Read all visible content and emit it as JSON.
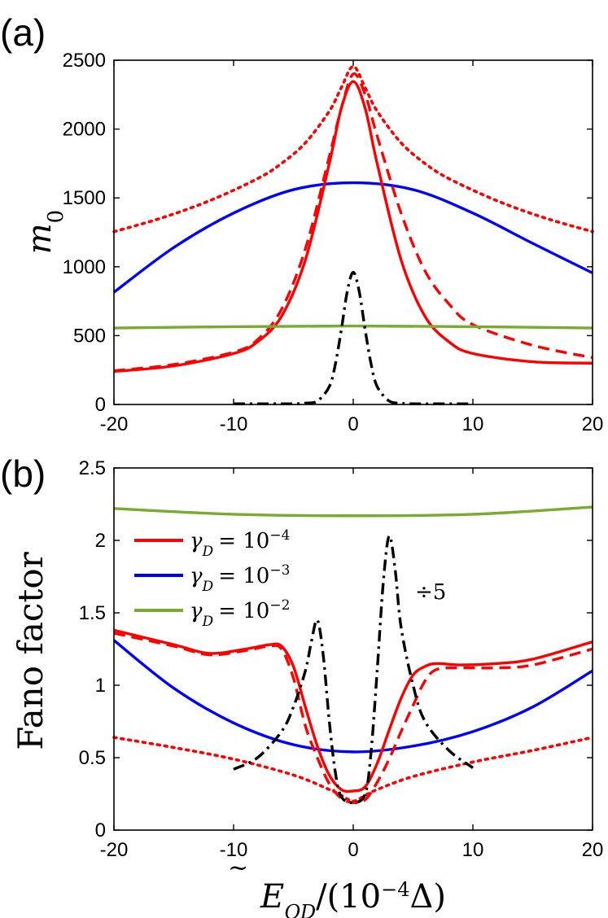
{
  "colors": {
    "red": "#ff0000",
    "blue": "#0000ff",
    "green": "#77ac30",
    "black": "#000000"
  },
  "chart_data": [
    {
      "panel_label": "(a)",
      "type": "line",
      "ylabel": "m",
      "ylabel_sub": "0",
      "xlim": [
        -20,
        20
      ],
      "ylim": [
        0,
        2500
      ],
      "xticks": [
        "-20",
        "-10",
        "0",
        "10",
        "20"
      ],
      "yticks": [
        "0",
        "500",
        "1000",
        "1500",
        "2000",
        "2500"
      ],
      "series": [
        {
          "name": "red dotted",
          "color": "#ff0000",
          "style": "dotted",
          "x": [
            -20,
            -16,
            -12,
            -8,
            -6,
            -4,
            -2,
            -1,
            0,
            1,
            2,
            4,
            6,
            8,
            12,
            16,
            20
          ],
          "y": [
            1255,
            1355,
            1480,
            1640,
            1750,
            1900,
            2130,
            2300,
            2455,
            2300,
            2130,
            1900,
            1750,
            1640,
            1480,
            1355,
            1255
          ]
        },
        {
          "name": "blue solid",
          "color": "#0000ff",
          "style": "solid",
          "x": [
            -20,
            -15,
            -10,
            -5,
            0,
            5,
            10,
            15,
            20
          ],
          "y": [
            815,
            1140,
            1390,
            1560,
            1610,
            1560,
            1390,
            1170,
            955
          ]
        },
        {
          "name": "red dashed",
          "color": "#ff0000",
          "style": "dashed",
          "x": [
            -20,
            -15,
            -10,
            -8,
            -6,
            -4,
            -2,
            -1,
            0,
            1,
            2,
            4,
            6,
            8,
            10,
            15,
            20
          ],
          "y": [
            245,
            290,
            380,
            470,
            690,
            1130,
            1800,
            2150,
            2400,
            2250,
            1950,
            1390,
            970,
            730,
            580,
            430,
            340
          ]
        },
        {
          "name": "red solid",
          "color": "#ff0000",
          "style": "solid",
          "x": [
            -20,
            -15,
            -10,
            -8,
            -6,
            -4,
            -2,
            -1,
            0,
            1,
            2,
            4,
            6,
            8,
            10,
            15,
            20
          ],
          "y": [
            240,
            280,
            370,
            455,
            640,
            1050,
            1750,
            2150,
            2345,
            2150,
            1750,
            1050,
            640,
            455,
            370,
            310,
            300
          ]
        },
        {
          "name": "green solid",
          "color": "#77ac30",
          "style": "solid",
          "x": [
            -20,
            -10,
            0,
            10,
            20
          ],
          "y": [
            555,
            565,
            570,
            565,
            555
          ]
        },
        {
          "name": "black dash-dot",
          "color": "#000000",
          "style": "dashdot",
          "x": [
            -10,
            -5,
            -4,
            -3,
            -2,
            -1.5,
            -1,
            -0.5,
            0,
            0.5,
            1,
            1.5,
            2,
            3,
            4,
            5,
            10
          ],
          "y": [
            5,
            5,
            10,
            25,
            130,
            290,
            540,
            820,
            960,
            820,
            540,
            290,
            130,
            25,
            10,
            5,
            5
          ]
        }
      ]
    },
    {
      "panel_label": "(b)",
      "type": "line",
      "ylabel": "Fano factor",
      "xlabel": "Ẽ_QD/(10^-4 Δ)",
      "xlabel_parts": {
        "E": "E",
        "sub": "QD",
        "mid": "/(10",
        "exp": "−4",
        "end": "Δ)"
      },
      "xlim": [
        -20,
        20
      ],
      "ylim": [
        0,
        2.5
      ],
      "xticks": [
        "-20",
        "-10",
        "0",
        "10",
        "20"
      ],
      "yticks": [
        "0",
        "0.5",
        "1",
        "1.5",
        "2",
        "2.5"
      ],
      "annotation": "÷5",
      "legend": [
        {
          "color": "#ff0000",
          "label_main": "γ",
          "label_sub": "D",
          "label_eq": "= 10",
          "label_exp": "−4"
        },
        {
          "color": "#0000ff",
          "label_main": "γ",
          "label_sub": "D",
          "label_eq": "= 10",
          "label_exp": "−3"
        },
        {
          "color": "#77ac30",
          "label_main": "γ",
          "label_sub": "D",
          "label_eq": "= 10",
          "label_exp": "−2"
        }
      ],
      "series": [
        {
          "name": "green solid",
          "color": "#77ac30",
          "style": "solid",
          "x": [
            -20,
            -10,
            0,
            10,
            20
          ],
          "y": [
            2.22,
            2.18,
            2.17,
            2.18,
            2.23
          ]
        },
        {
          "name": "blue solid",
          "color": "#0000ff",
          "style": "solid",
          "x": [
            -20,
            -15,
            -10,
            -5,
            0,
            5,
            10,
            15,
            20
          ],
          "y": [
            1.31,
            0.98,
            0.74,
            0.59,
            0.54,
            0.58,
            0.68,
            0.85,
            1.1
          ]
        },
        {
          "name": "red dotted",
          "color": "#ff0000",
          "style": "dotted",
          "x": [
            -20,
            -15,
            -10,
            -5,
            -2,
            -1,
            0,
            1,
            2,
            5,
            10,
            15,
            20
          ],
          "y": [
            0.64,
            0.57,
            0.49,
            0.38,
            0.28,
            0.24,
            0.2,
            0.24,
            0.28,
            0.37,
            0.47,
            0.55,
            0.64
          ]
        },
        {
          "name": "red dashed",
          "color": "#ff0000",
          "style": "dashed",
          "x": [
            -20,
            -15,
            -12,
            -9,
            -7,
            -6,
            -5,
            -4,
            -3,
            -2,
            -1,
            0,
            1,
            2,
            3,
            4,
            5,
            6,
            7,
            9,
            12,
            15,
            20
          ],
          "y": [
            1.36,
            1.27,
            1.21,
            1.24,
            1.27,
            1.25,
            1.05,
            0.72,
            0.5,
            0.32,
            0.22,
            0.19,
            0.21,
            0.33,
            0.49,
            0.68,
            0.86,
            1.03,
            1.11,
            1.12,
            1.12,
            1.14,
            1.25
          ]
        },
        {
          "name": "red solid",
          "color": "#ff0000",
          "style": "solid",
          "x": [
            -20,
            -15,
            -12,
            -9,
            -7,
            -6,
            -5,
            -4,
            -3,
            -2,
            -1,
            0,
            1,
            2,
            3,
            4,
            5,
            6,
            7,
            9,
            12,
            15,
            20
          ],
          "y": [
            1.38,
            1.28,
            1.22,
            1.25,
            1.28,
            1.27,
            1.13,
            0.85,
            0.58,
            0.38,
            0.28,
            0.27,
            0.3,
            0.46,
            0.69,
            0.91,
            1.07,
            1.13,
            1.15,
            1.14,
            1.15,
            1.18,
            1.3
          ]
        },
        {
          "name": "black dash-dot (÷5)",
          "color": "#000000",
          "style": "dashdot",
          "x": [
            -10,
            -8,
            -6,
            -5,
            -4,
            -3.5,
            -3,
            -2.5,
            -2,
            -1.5,
            -1,
            0,
            1,
            1.5,
            2,
            2.5,
            3,
            3.5,
            4,
            5,
            6,
            8,
            10
          ],
          "y": [
            0.42,
            0.5,
            0.68,
            0.85,
            1.1,
            1.3,
            1.45,
            1.2,
            0.75,
            0.4,
            0.23,
            0.19,
            0.25,
            0.55,
            1.1,
            1.7,
            2.03,
            1.8,
            1.4,
            1.0,
            0.75,
            0.55,
            0.43
          ]
        }
      ]
    }
  ]
}
